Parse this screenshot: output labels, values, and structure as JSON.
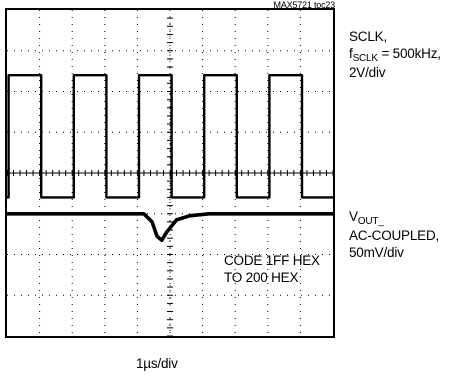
{
  "figure_id": "MAX5721 toc23",
  "channel1": {
    "line1": "SCLK,",
    "freq_prefix": "f",
    "freq_sub": "SCLK",
    "freq_value": " = 500kHz,",
    "scale": "2V/div"
  },
  "channel2": {
    "prefix": "V",
    "sub": "OUT_",
    "line2": "AC-COUPLED,",
    "scale": "50mV/div"
  },
  "annotation": {
    "line1": "CODE 1FF HEX",
    "line2": "TO 200 HEX"
  },
  "time_scale": "1µs/div",
  "chart_data": {
    "type": "line",
    "x_unit": "div",
    "xlim": [
      0,
      10
    ],
    "ylim": [
      -4,
      4
    ],
    "grid": true,
    "series": [
      {
        "name": "SCLK",
        "x": [
          0,
          0.05,
          0.05,
          1.05,
          1.05,
          2.05,
          2.05,
          3.05,
          3.05,
          4.05,
          4.05,
          5.05,
          5.05,
          6.05,
          6.05,
          7.05,
          7.05,
          8.05,
          8.05,
          9.05,
          9.05,
          10
        ],
        "values": [
          -0.6,
          -0.6,
          2.4,
          2.4,
          -0.6,
          -0.6,
          2.4,
          2.4,
          -0.6,
          -0.6,
          2.4,
          2.4,
          -0.6,
          -0.6,
          2.4,
          2.4,
          -0.6,
          -0.6,
          2.4,
          2.4,
          -0.6,
          -0.6
        ]
      },
      {
        "name": "VOUT_",
        "x": [
          0,
          4.2,
          4.45,
          4.6,
          4.75,
          4.9,
          5.2,
          5.6,
          6.2,
          10
        ],
        "values": [
          -1.0,
          -1.0,
          -1.2,
          -1.55,
          -1.65,
          -1.45,
          -1.15,
          -1.05,
          -1.0,
          -1.0
        ]
      }
    ]
  }
}
